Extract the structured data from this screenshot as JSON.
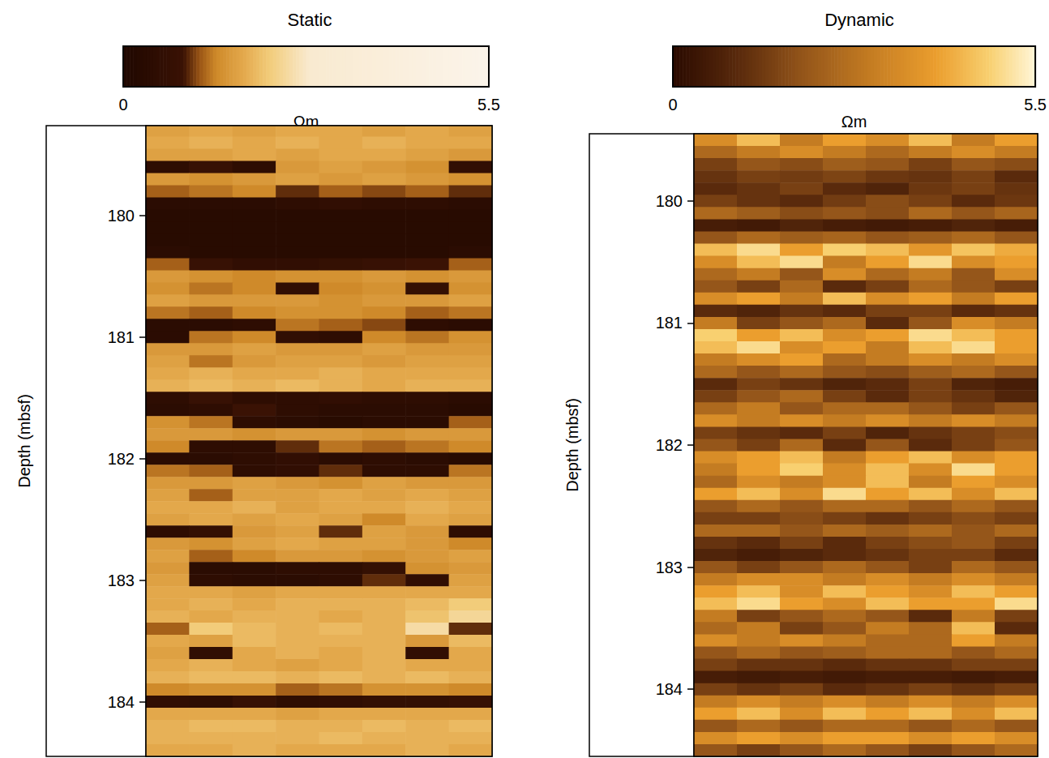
{
  "chart_data": [
    {
      "type": "heatmap",
      "title": "Static",
      "y_label": "Depth (mbsf)",
      "ylim": [
        179.26,
        184.45
      ],
      "yticks": [
        180,
        181,
        182,
        183,
        184
      ],
      "tick_labels": "y",
      "colorbar": {
        "range": [
          0,
          5.5
        ],
        "ticks": [
          0,
          5.5
        ],
        "label": "Ωm"
      },
      "depths": [
        179.3,
        179.4,
        179.5,
        179.6,
        179.7,
        179.8,
        179.9,
        180.0,
        180.1,
        180.2,
        180.3,
        180.4,
        180.5,
        180.6,
        180.7,
        180.8,
        180.9,
        181.0,
        181.1,
        181.2,
        181.3,
        181.4,
        181.5,
        181.6,
        181.7,
        181.8,
        181.9,
        182.0,
        182.1,
        182.2,
        182.3,
        182.4,
        182.5,
        182.6,
        182.7,
        182.8,
        182.9,
        183.0,
        183.1,
        183.2,
        183.3,
        183.4,
        183.5,
        183.6,
        183.7,
        183.8,
        183.9,
        184.0,
        184.1,
        184.2,
        184.3,
        184.4
      ],
      "cells": [
        [
          1.7,
          1.8,
          1.7,
          1.8,
          1.8,
          1.7,
          1.8,
          1.7
        ],
        [
          1.8,
          1.9,
          1.8,
          1.9,
          1.8,
          1.9,
          1.8,
          1.8
        ],
        [
          1.7,
          1.7,
          1.8,
          1.7,
          1.8,
          1.8,
          1.7,
          1.6
        ],
        [
          0.5,
          0.8,
          0.5,
          1.6,
          1.7,
          1.6,
          1.5,
          0.6
        ],
        [
          1.6,
          1.5,
          1.6,
          1.7,
          1.6,
          1.7,
          1.6,
          1.5
        ],
        [
          1.2,
          1.3,
          1.4,
          1.0,
          1.2,
          1.1,
          1.2,
          1.0
        ],
        [
          0.4,
          0.4,
          0.4,
          0.5,
          0.6,
          0.5,
          0.5,
          0.4
        ],
        [
          0.3,
          0.3,
          0.3,
          0.3,
          0.3,
          0.3,
          0.3,
          0.3
        ],
        [
          0.3,
          0.3,
          0.3,
          0.3,
          0.3,
          0.3,
          0.3,
          0.3
        ],
        [
          0.3,
          0.3,
          0.3,
          0.3,
          0.3,
          0.3,
          0.3,
          0.3
        ],
        [
          0.4,
          0.3,
          0.3,
          0.3,
          0.3,
          0.3,
          0.3,
          0.4
        ],
        [
          1.2,
          0.8,
          0.6,
          0.6,
          0.7,
          0.8,
          0.9,
          1.2
        ],
        [
          1.6,
          1.5,
          1.4,
          1.5,
          1.5,
          1.6,
          1.5,
          1.6
        ],
        [
          1.5,
          1.3,
          1.4,
          0.6,
          1.4,
          1.5,
          0.7,
          1.5
        ],
        [
          1.7,
          1.6,
          1.6,
          1.6,
          1.5,
          1.6,
          1.6,
          1.7
        ],
        [
          1.3,
          1.2,
          1.4,
          1.5,
          1.5,
          1.4,
          1.2,
          1.3
        ],
        [
          0.4,
          0.4,
          0.5,
          1.3,
          1.2,
          1.1,
          0.5,
          0.4
        ],
        [
          0.4,
          1.3,
          1.4,
          0.6,
          0.5,
          1.4,
          1.3,
          1.5
        ],
        [
          1.6,
          1.6,
          1.7,
          1.6,
          1.6,
          1.7,
          1.6,
          1.6
        ],
        [
          1.7,
          1.3,
          1.6,
          1.7,
          1.7,
          1.6,
          1.7,
          1.7
        ],
        [
          1.8,
          1.9,
          1.8,
          1.8,
          1.9,
          1.8,
          1.8,
          1.8
        ],
        [
          1.9,
          2.0,
          1.9,
          2.0,
          1.9,
          1.8,
          1.9,
          1.9
        ],
        [
          0.5,
          0.8,
          0.5,
          0.5,
          0.6,
          0.5,
          0.5,
          0.4
        ],
        [
          0.4,
          0.5,
          0.9,
          0.5,
          0.4,
          0.4,
          0.4,
          0.3
        ],
        [
          1.5,
          1.3,
          0.5,
          0.4,
          0.3,
          0.4,
          0.4,
          1.2
        ],
        [
          1.6,
          1.6,
          1.5,
          1.6,
          1.6,
          1.5,
          1.6,
          1.6
        ],
        [
          1.4,
          0.5,
          0.5,
          1.0,
          1.3,
          1.2,
          1.3,
          1.4
        ],
        [
          0.4,
          0.4,
          0.5,
          0.6,
          0.4,
          0.5,
          0.4,
          0.3
        ],
        [
          1.3,
          1.2,
          0.5,
          0.6,
          1.0,
          0.5,
          0.5,
          1.3
        ],
        [
          1.6,
          1.6,
          1.7,
          1.6,
          1.5,
          1.7,
          1.6,
          1.6
        ],
        [
          1.7,
          1.2,
          1.7,
          1.7,
          1.8,
          1.7,
          1.8,
          1.7
        ],
        [
          1.8,
          1.8,
          1.9,
          1.7,
          1.8,
          1.8,
          1.9,
          1.8
        ],
        [
          1.7,
          1.8,
          1.7,
          1.8,
          1.7,
          1.4,
          1.8,
          1.7
        ],
        [
          0.5,
          0.7,
          1.6,
          1.7,
          1.0,
          1.7,
          1.6,
          0.5
        ],
        [
          1.6,
          1.5,
          1.7,
          1.8,
          1.7,
          1.7,
          1.6,
          1.4
        ],
        [
          1.7,
          1.2,
          1.4,
          1.6,
          1.6,
          1.5,
          1.6,
          1.7
        ],
        [
          1.6,
          0.4,
          0.4,
          0.5,
          0.5,
          0.7,
          1.5,
          1.6
        ],
        [
          1.7,
          0.5,
          0.4,
          0.4,
          0.5,
          1.0,
          0.6,
          1.7
        ],
        [
          1.8,
          1.8,
          1.7,
          1.8,
          1.8,
          1.8,
          1.8,
          1.8
        ],
        [
          1.8,
          1.9,
          1.8,
          1.9,
          1.9,
          1.9,
          2.0,
          2.2
        ],
        [
          1.9,
          1.8,
          1.9,
          1.9,
          1.8,
          1.9,
          2.1,
          2.4
        ],
        [
          1.2,
          2.2,
          2.0,
          1.9,
          2.0,
          1.9,
          2.5,
          1.0
        ],
        [
          1.8,
          1.7,
          2.0,
          1.9,
          1.9,
          1.9,
          1.6,
          2.0
        ],
        [
          1.7,
          0.6,
          1.8,
          1.9,
          1.8,
          1.9,
          0.6,
          1.8
        ],
        [
          1.8,
          1.9,
          1.8,
          1.7,
          1.8,
          1.9,
          1.8,
          1.8
        ],
        [
          1.9,
          2.0,
          2.0,
          1.9,
          2.0,
          1.9,
          2.0,
          1.9
        ],
        [
          1.4,
          1.5,
          1.5,
          1.2,
          1.3,
          1.5,
          1.5,
          1.4
        ],
        [
          0.6,
          0.5,
          0.8,
          0.5,
          0.6,
          0.7,
          0.7,
          0.8
        ],
        [
          1.8,
          1.8,
          1.8,
          1.7,
          1.8,
          1.8,
          1.8,
          1.8
        ],
        [
          1.9,
          2.0,
          2.0,
          1.9,
          1.9,
          2.0,
          1.9,
          2.0
        ],
        [
          1.9,
          1.9,
          1.9,
          1.9,
          2.0,
          1.9,
          1.9,
          1.9
        ],
        [
          1.8,
          1.8,
          1.9,
          1.8,
          1.8,
          1.8,
          1.9,
          1.8
        ]
      ]
    },
    {
      "type": "heatmap",
      "title": "Dynamic",
      "y_label": "Depth (mbsf)",
      "ylim": [
        179.45,
        184.55
      ],
      "yticks": [
        180,
        181,
        182,
        183,
        184
      ],
      "tick_labels": "y",
      "colorbar": {
        "range": [
          0,
          5.5
        ],
        "ticks": [
          0,
          5.5
        ],
        "label": "Ωm"
      },
      "depths": [
        179.5,
        179.6,
        179.7,
        179.8,
        179.9,
        180.0,
        180.1,
        180.2,
        180.3,
        180.4,
        180.5,
        180.6,
        180.7,
        180.8,
        180.9,
        181.0,
        181.1,
        181.2,
        181.3,
        181.4,
        181.5,
        181.6,
        181.7,
        181.8,
        181.9,
        182.0,
        182.1,
        182.2,
        182.3,
        182.4,
        182.5,
        182.6,
        182.7,
        182.8,
        182.9,
        183.0,
        183.1,
        183.2,
        183.3,
        183.4,
        183.5,
        183.6,
        183.7,
        183.8,
        183.9,
        184.0,
        184.1,
        184.2,
        184.3,
        184.4,
        184.5
      ],
      "cells": [
        [
          3.5,
          4.5,
          3.0,
          4.0,
          3.5,
          4.5,
          3.0,
          4.0
        ],
        [
          2.5,
          3.0,
          3.5,
          3.0,
          2.5,
          3.0,
          3.5,
          3.0
        ],
        [
          1.5,
          2.0,
          1.8,
          2.2,
          2.0,
          1.5,
          2.0,
          1.8
        ],
        [
          1.2,
          1.5,
          1.4,
          1.6,
          1.3,
          1.2,
          1.5,
          1.0
        ],
        [
          1.0,
          1.2,
          1.5,
          1.0,
          0.8,
          1.3,
          1.5,
          1.2
        ],
        [
          1.5,
          1.2,
          1.0,
          1.4,
          1.8,
          1.5,
          1.0,
          1.3
        ],
        [
          2.5,
          2.2,
          1.8,
          2.0,
          1.8,
          2.5,
          2.0,
          2.4
        ],
        [
          0.6,
          0.5,
          0.8,
          0.6,
          0.5,
          0.6,
          0.8,
          0.6
        ],
        [
          2.0,
          2.5,
          2.2,
          2.4,
          2.0,
          2.2,
          2.5,
          2.0
        ],
        [
          4.5,
          5.0,
          4.0,
          4.8,
          4.5,
          3.8,
          4.6,
          4.2
        ],
        [
          3.5,
          4.5,
          5.0,
          3.0,
          4.0,
          5.0,
          3.5,
          4.0
        ],
        [
          2.5,
          3.0,
          2.0,
          3.5,
          2.5,
          3.0,
          2.0,
          3.5
        ],
        [
          2.0,
          1.5,
          2.5,
          1.0,
          1.5,
          2.5,
          2.0,
          1.5
        ],
        [
          3.5,
          4.0,
          3.0,
          4.5,
          3.5,
          4.0,
          3.0,
          4.0
        ],
        [
          1.0,
          0.8,
          1.2,
          1.0,
          1.5,
          1.5,
          1.0,
          1.2
        ],
        [
          3.0,
          1.5,
          2.0,
          2.5,
          1.0,
          2.0,
          3.5,
          3.0
        ],
        [
          4.8,
          4.0,
          4.5,
          3.5,
          4.0,
          5.0,
          4.5,
          4.0
        ],
        [
          4.5,
          5.0,
          3.5,
          4.0,
          3.0,
          4.5,
          5.0,
          4.0
        ],
        [
          3.0,
          3.5,
          4.0,
          2.5,
          3.0,
          3.5,
          3.0,
          3.5
        ],
        [
          2.5,
          2.0,
          2.5,
          2.0,
          1.8,
          2.2,
          2.5,
          2.0
        ],
        [
          1.0,
          1.5,
          1.2,
          0.8,
          1.0,
          1.5,
          0.8,
          0.6
        ],
        [
          1.5,
          2.0,
          2.5,
          1.5,
          1.0,
          1.5,
          1.2,
          0.8
        ],
        [
          2.5,
          3.0,
          2.0,
          2.5,
          2.5,
          2.0,
          1.5,
          2.0
        ],
        [
          3.5,
          3.0,
          3.5,
          3.0,
          3.5,
          3.0,
          3.5,
          3.0
        ],
        [
          1.5,
          1.2,
          1.0,
          1.5,
          0.8,
          1.2,
          1.5,
          1.8
        ],
        [
          2.0,
          1.5,
          2.5,
          1.0,
          2.0,
          1.0,
          1.5,
          2.0
        ],
        [
          3.5,
          4.0,
          4.5,
          3.0,
          4.0,
          4.5,
          3.5,
          4.0
        ],
        [
          3.0,
          4.0,
          4.8,
          3.5,
          4.5,
          3.5,
          5.0,
          4.0
        ],
        [
          2.5,
          3.5,
          3.0,
          3.5,
          4.5,
          3.0,
          4.0,
          3.5
        ],
        [
          4.0,
          4.5,
          3.5,
          5.0,
          4.0,
          4.5,
          3.5,
          4.5
        ],
        [
          2.0,
          2.5,
          2.0,
          2.5,
          2.5,
          2.0,
          2.5,
          2.0
        ],
        [
          1.5,
          1.5,
          1.8,
          1.5,
          1.2,
          1.5,
          1.8,
          1.5
        ],
        [
          2.5,
          2.5,
          2.0,
          2.5,
          2.2,
          2.5,
          2.0,
          2.5
        ],
        [
          1.2,
          1.0,
          1.5,
          1.0,
          1.5,
          1.8,
          2.0,
          1.5
        ],
        [
          0.8,
          0.6,
          0.8,
          1.0,
          1.2,
          1.5,
          1.5,
          1.0
        ],
        [
          2.0,
          1.5,
          2.0,
          2.5,
          2.0,
          1.5,
          2.5,
          2.0
        ],
        [
          3.0,
          3.5,
          3.5,
          3.0,
          3.5,
          3.0,
          3.5,
          3.0
        ],
        [
          4.0,
          4.5,
          3.5,
          4.5,
          4.0,
          3.5,
          4.5,
          4.0
        ],
        [
          4.5,
          5.0,
          4.0,
          3.5,
          4.5,
          4.0,
          4.0,
          5.0
        ],
        [
          3.0,
          1.5,
          2.0,
          2.5,
          2.0,
          1.0,
          3.0,
          1.5
        ],
        [
          2.5,
          3.0,
          1.5,
          2.0,
          3.0,
          2.5,
          4.5,
          1.0
        ],
        [
          3.5,
          3.0,
          3.5,
          3.0,
          2.5,
          2.5,
          4.0,
          3.0
        ],
        [
          2.0,
          2.5,
          2.0,
          2.2,
          2.5,
          2.5,
          2.0,
          2.5
        ],
        [
          1.5,
          1.2,
          1.2,
          1.0,
          1.2,
          1.2,
          1.5,
          1.5
        ],
        [
          0.6,
          0.5,
          0.6,
          0.5,
          0.6,
          0.6,
          0.5,
          0.6
        ],
        [
          1.5,
          1.2,
          1.5,
          1.0,
          1.2,
          1.5,
          1.2,
          1.5
        ],
        [
          3.0,
          3.5,
          3.0,
          3.5,
          3.0,
          3.5,
          3.0,
          3.5
        ],
        [
          4.0,
          4.5,
          3.5,
          4.5,
          4.0,
          4.5,
          3.5,
          4.5
        ],
        [
          2.0,
          2.5,
          2.0,
          2.5,
          2.5,
          2.0,
          2.5,
          2.0
        ],
        [
          3.5,
          4.0,
          3.5,
          4.0,
          4.0,
          3.5,
          4.0,
          3.5
        ],
        [
          2.0,
          1.5,
          2.0,
          2.5,
          2.0,
          1.5,
          2.0,
          2.5
        ]
      ]
    }
  ]
}
